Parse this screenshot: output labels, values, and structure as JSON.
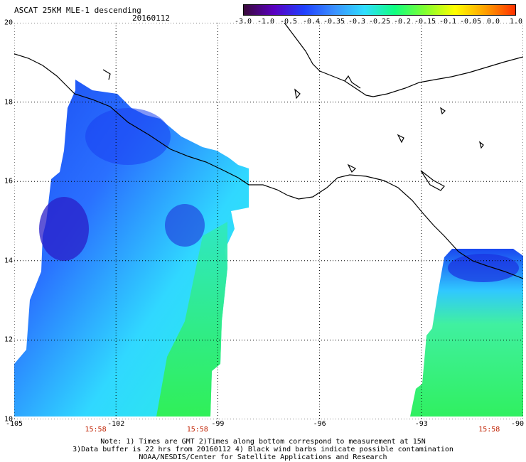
{
  "header": {
    "title": "ASCAT 25KM MLE-1 descending",
    "date": "20160112"
  },
  "colorbar": {
    "labels": [
      "-3.0",
      "-1.0",
      "-0.5",
      "-0.4",
      "-0.35",
      "-0.3",
      "-0.25",
      "-0.2",
      "-0.15",
      "-0.1",
      "-0.05",
      "0.0",
      "1.0"
    ],
    "colors": [
      "#3a0a3a",
      "#5a00c0",
      "#2040ff",
      "#3a90ff",
      "#30ddff",
      "#10ff80",
      "#80ff30",
      "#ffff00",
      "#ffa000",
      "#ff3000"
    ]
  },
  "axes": {
    "lat_labels": [
      "20",
      "18",
      "16",
      "14",
      "12",
      "10"
    ],
    "lat_values": [
      20,
      18,
      16,
      14,
      12,
      10
    ],
    "lon_labels": [
      "-105",
      "-102",
      "-99",
      "-96",
      "-93",
      "-90"
    ],
    "lon_values": [
      -105,
      -102,
      -99,
      -96,
      -93,
      -90
    ],
    "time_labels": [
      "15:58",
      "15:58",
      "15:58"
    ],
    "time_lon_values": [
      -102.6,
      -99.6,
      -91.0
    ]
  },
  "notes": [
    "Note: 1) Times are GMT 2)Times along bottom correspond to measurement at 15N",
    "3)Data buffer is 22 hrs from 20160112 4) Black wind barbs indicate possible contamination",
    "NOAA/NESDIS/Center for Satellite Applications and Research"
  ]
}
